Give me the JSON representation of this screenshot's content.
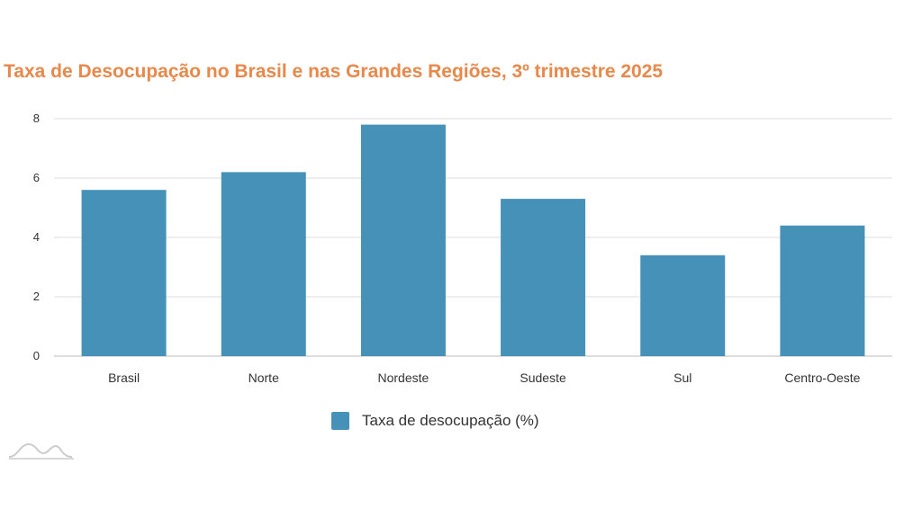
{
  "colors": {
    "title": "#E8884A",
    "bar": "#4591B8",
    "grid": "#DDDDDD",
    "axis": "#BBBBBB",
    "logo": "#CCCCCC"
  },
  "logo_icon": "hills-wave-icon",
  "chart_data": {
    "type": "bar",
    "title": "Taxa de Desocupação no Brasil e nas Grandes Regiões, 3º trimestre 2025",
    "categories": [
      "Brasil",
      "Norte",
      "Nordeste",
      "Sudeste",
      "Sul",
      "Centro-Oeste"
    ],
    "series": [
      {
        "name": "Taxa de desocupação (%)",
        "values": [
          5.6,
          6.2,
          7.8,
          5.3,
          3.4,
          4.4
        ]
      }
    ],
    "yticks": [
      "0",
      "2",
      "4",
      "6",
      "8"
    ],
    "ylim": [
      0,
      8
    ],
    "grid": true,
    "legend": "bottom-center"
  }
}
